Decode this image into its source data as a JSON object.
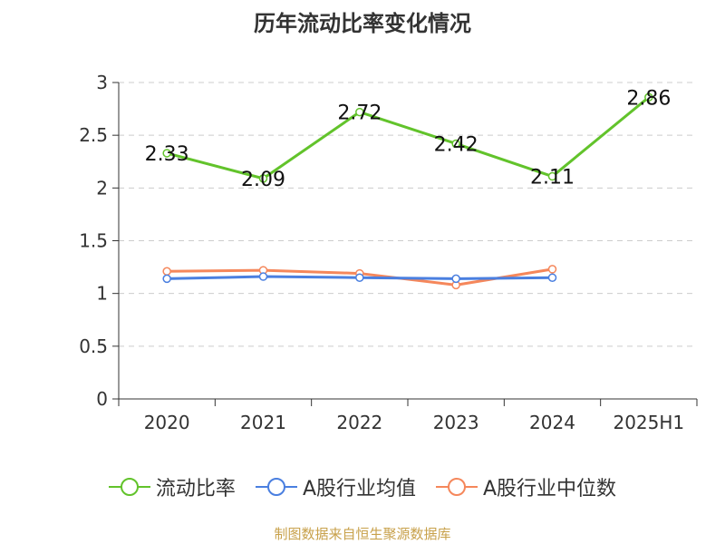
{
  "chart_data": {
    "type": "line",
    "title": "历年流动比率变化情况",
    "categories": [
      "2020",
      "2021",
      "2022",
      "2023",
      "2024",
      "2025H1"
    ],
    "ylim": [
      0,
      3
    ],
    "yticks": [
      "0",
      "0.5",
      "1",
      "1.5",
      "2",
      "2.5",
      "3"
    ],
    "grid": true,
    "legend_position": "bottom",
    "series": [
      {
        "name": "流动比率",
        "color": "#62c32b",
        "values": [
          2.33,
          2.09,
          2.72,
          2.42,
          2.11,
          2.86
        ],
        "labels": [
          "2.33",
          "2.09",
          "2.72",
          "2.42",
          "2.11",
          "2.86"
        ]
      },
      {
        "name": "A股行业均值",
        "color": "#4a7fe0",
        "values": [
          1.14,
          1.16,
          1.15,
          1.14,
          1.15,
          null
        ]
      },
      {
        "name": "A股行业中位数",
        "color": "#f5875b",
        "values": [
          1.21,
          1.22,
          1.19,
          1.08,
          1.23,
          null
        ]
      }
    ]
  },
  "footer": {
    "source": "制图数据来自恒生聚源数据库"
  }
}
